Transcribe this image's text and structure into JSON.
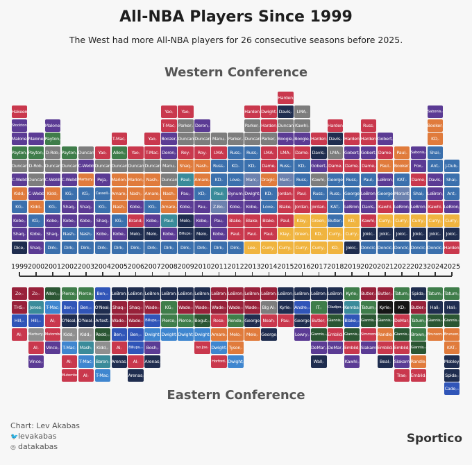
{
  "title": "All-NBA Players Since 1999",
  "subtitle": "The West had more All-NBA players for 26 consecutive seasons before 2025.",
  "footer": {
    "credit": "Chart: Lev Akabas",
    "twitter": "levakabas",
    "instagram": "datakabas",
    "logo": "Sportico"
  },
  "chart_data": {
    "type": "stacked-tile",
    "title": "All-NBA Players Since 1999",
    "years": [
      "1999",
      "2000",
      "2001",
      "2002",
      "2003",
      "2004",
      "2005",
      "2006",
      "2007",
      "2008",
      "2009",
      "2010",
      "2011",
      "2012",
      "2013",
      "2014",
      "2015",
      "2016",
      "2017",
      "2018",
      "2019",
      "2020",
      "2021",
      "2022",
      "2023",
      "2024",
      "2025"
    ],
    "palette": {
      "r": "#c9384d",
      "m": "#98213a",
      "p": "#5b3b94",
      "g": "#3f7d4a",
      "dg": "#2b5633",
      "s": "#7d7d7d",
      "o": "#e07b3c",
      "b": "#3b70ad",
      "n": "#1f2d4f",
      "y": "#f0b43f",
      "t": "#3a8b9a",
      "l": "#3f86cf",
      "sl": "#6c81ae",
      "k": "#151515",
      "pb": "#3055b8",
      "gr": "#8f8f8f"
    },
    "west": {
      "label": "Western Conference",
      "columns": [
        [
          "Dice|n",
          "Shaq|p",
          "Kobe|p",
          "KG|b",
          "Kidd|o",
          "C-Webb|p",
          "Duncan|s",
          "Payton|g",
          "Malone|p",
          "Stockton|p",
          "Hakeem|r"
        ],
        [
          "Shaq|p",
          "Kobe|p",
          "KG|b",
          "Kidd|o",
          "C-Webb|p",
          "Duncan|s",
          "D-Rob|s",
          "Payton|g",
          "Malone|p"
        ],
        [
          "Dirk|b",
          "Shaq|p",
          "Kobe|p",
          "KG|b",
          "Kidd|o",
          "C-Webb|p",
          "Duncan|s",
          "D-Rob|s",
          "Payton|g",
          "Malone|p"
        ],
        [
          "Dirk|b",
          "Nash|b",
          "Kobe|p",
          "Shaq|p",
          "KG|b",
          "C-Webb|p",
          "Duncan|s",
          "Payton|g"
        ],
        [
          "Dirk|b",
          "Nash|b",
          "Kobe|p",
          "Shaq|p",
          "KG|b",
          "Marbury|o",
          "C-Webb|p",
          "Duncan|s"
        ],
        [
          "Dirk|b",
          "Kobe|p",
          "Shaq|p",
          "KG|b",
          "Cassell|b",
          "Peja|p",
          "Duncan|s",
          "Yao|r"
        ],
        [
          "Dirk|b",
          "Kobe|p",
          "KG|b",
          "Nash|o",
          "Amare|o",
          "Marion|o",
          "Duncan|s",
          "Allen|g",
          "T-Mac|r"
        ],
        [
          "Dirk|b",
          "Melo|n",
          "Brand|r",
          "Kobe|p",
          "Nash|o",
          "Marion|o",
          "Duncan|s",
          "Yao|r"
        ],
        [
          "Dirk|b",
          "Melo|n",
          "Kobe|p",
          "KG|b",
          "Amare|o",
          "Nash|o",
          "Duncan|s",
          "T-Mac|r",
          "Yao|r"
        ],
        [
          "Dirk|b",
          "Kobe|p",
          "Paul|t",
          "Amare|o",
          "Nash|o",
          "Duncan|s",
          "Manu|s",
          "Deron|p",
          "Boozer|p",
          "T-Mac|r",
          "Yao|r"
        ],
        [
          "Dirk|b",
          "Billups|n",
          "Melo|n",
          "Kobe|p",
          "Pau|p",
          "Paul|t",
          "Shaq|o",
          "Roy|r",
          "Duncan|s",
          "Parker|s",
          "Yao|r"
        ],
        [
          "Dirk|b",
          "Melo|n",
          "Kobe|p",
          "Pau|p",
          "KD|b",
          "Amare|o",
          "Nash|o",
          "Roy|r",
          "Duncan|s",
          "Deron|p"
        ],
        [
          "Dirk|b",
          "Kobe|p",
          "Pau|p",
          "Z-Bo|sl",
          "Paul|t",
          "KD|b",
          "Russ|b",
          "LMA|r",
          "Manu|s"
        ],
        [
          "Dirk|b",
          "Paul|r",
          "Blake|r",
          "Kobe|p",
          "Bynum|p",
          "Love|b",
          "KD|b",
          "Russ|b",
          "Parker|s"
        ],
        [
          "Lee|y",
          "Paul|r",
          "Blake|r",
          "Kobe|p",
          "Dwight|p",
          "Marc|sl",
          "KD|b",
          "Russ|b",
          "Duncan|s",
          "Parker|s",
          "Harden|r"
        ],
        [
          "Curry|y",
          "Paul|r",
          "Blake|r",
          "Love|b",
          "KD|b",
          "Dragic|o",
          "Dame|r",
          "LMA|r",
          "Parker|s",
          "Harden|r",
          "Dwight|r"
        ],
        [
          "Curry|y",
          "Klay|y",
          "Paul|r",
          "Blake|r",
          "Jordan|r",
          "Marc|sl",
          "Russ|b",
          "LMA|r",
          "Boogie|p",
          "Duncan|s",
          "Davis|n",
          "Harden|r"
        ],
        [
          "Curry|y",
          "Green|y",
          "Klay|y",
          "Jordan|r",
          "Paul|r",
          "Russ|b",
          "KD|b",
          "Dame|r",
          "Boogie|p",
          "Kawhi|s",
          "LMA|s"
        ],
        [
          "Curry|y",
          "KD|y",
          "Green|y",
          "Jordan|r",
          "Russ|b",
          "Kawhi|s",
          "Gobert|p",
          "Davis|n",
          "Harden|r"
        ],
        [
          "KD|y",
          "Curry|y",
          "Butler|b",
          "KAT|b",
          "Russ|b",
          "George|b",
          "Dame|r",
          "LMA|s",
          "Davis|n",
          "Harden|r"
        ],
        [
          "Jokic|n",
          "Curry|y",
          "KD|y",
          "LeBron|p",
          "George|b",
          "Russ|b",
          "Dame|r",
          "Gobert|p",
          "Harden|r"
        ],
        [
          "Doncic|b",
          "Jokic|n",
          "Kawhi|r",
          "Davis|p",
          "LeBron|p",
          "Paul|b",
          "Dame|r",
          "Gobert|p",
          "Harden|r",
          "Russ|r"
        ],
        [
          "Doncic|b",
          "Jokic|n",
          "Curry|y",
          "Kawhi|r",
          "George|b",
          "LeBron|p",
          "Paul|o",
          "Dame|r",
          "Gobert|p"
        ],
        [
          "Doncic|b",
          "Jokic|n",
          "Curry|y",
          "LeBron|p",
          "Morant|sl",
          "KAT|b",
          "Booker|o",
          "Paul|o"
        ],
        [
          "Doncic|b",
          "Jokic|n",
          "Curry|y",
          "LeBron|p",
          "Shai|b",
          "Dame|r",
          "Fox|p",
          "Sabonis|p"
        ],
        [
          "Doncic|b",
          "Jokic|n",
          "Curry|y",
          "Kawhi|r",
          "LeBron|p",
          "Davis|p",
          "Ant|b",
          "Shai|b",
          "KD|o",
          "Booker|o",
          "Sabonis|p"
        ],
        [
          "Harden|r",
          "Jokic|n",
          "Curry|y",
          "LeBron|p",
          "Ant|b",
          "Shai|b",
          "J-Dub|b"
        ]
      ]
    },
    "east": {
      "label": "Eastern Conference",
      "columns": [
        [
          "Zo|m",
          "THS|m",
          "Hill|pb",
          "AI|r"
        ],
        [
          "Zo|m",
          "Jones|t",
          "Hill|pb",
          "Marbury|gr",
          "AI|r",
          "Vince|p"
        ],
        [
          "Allen|dg",
          "T-Mac|l",
          "AI|r",
          "Mutombo|r",
          "Vince|p"
        ],
        [
          "Pierce|g",
          "Ben|pb",
          "O'Neal|n",
          "Kidd|gr",
          "T-Mac|l",
          "AI|r",
          "Mutombo|r"
        ],
        [
          "Pierce|g",
          "Ben|pb",
          "O'Neal|n",
          "Kidd|gr",
          "Mash|t",
          "T-Mac|l",
          "AI|r"
        ],
        [
          "Ben|pb",
          "O'Neal|n",
          "Artest|n",
          "Redd|dg",
          "Kidd|gr",
          "Baron|t",
          "T-Mac|l"
        ],
        [
          "LeBron|n",
          "Shaq|m",
          "Wade|m",
          "Ben|pb",
          "AI|r",
          "Arenas|n"
        ],
        [
          "LeBron|n",
          "Shaq|m",
          "Wade|m",
          "Ben|pb",
          "Billups|pb",
          "AI|r",
          "Arenas|n"
        ],
        [
          "LeBron|n",
          "Wade|m",
          "Billups|pb",
          "Dwight|l",
          "Bosh|p",
          "Arenas|n"
        ],
        [
          "LeBron|n",
          "KG|g",
          "Pierce|g",
          "Dwight|l"
        ],
        [
          "LeBron|n",
          "Wade|m",
          "Pierce|g",
          "Dwight|l"
        ],
        [
          "LeBron|n",
          "Wade|m",
          "Bogut|dg",
          "Dwight|l",
          "Iso Joe|r"
        ],
        [
          "LeBron|m",
          "Wade|m",
          "Rose|r",
          "Amare|o",
          "Dwight|l",
          "Horford|r"
        ],
        [
          "LeBron|m",
          "Wade|m",
          "Rondo|g",
          "Melo|o",
          "Tyson|o",
          "Dwight|l"
        ],
        [
          "LeBron|m",
          "Wade|m",
          "George|n",
          "Melo|o"
        ],
        [
          "LeBron|m",
          "Big Al|s",
          "Noah|r",
          "George|n"
        ],
        [
          "LeBron|n",
          "Kyrie|n",
          "Pau|r"
        ],
        [
          "LeBron|n",
          "Andre|pb",
          "George|n",
          "Lowry|p"
        ],
        [
          "LeBron|n",
          "IT|g",
          "Butler|r",
          "Giannis|dg",
          "DeMar|p",
          "Wall|n"
        ],
        [
          "LeBron|n",
          "Oladipo|n",
          "Giannis|dg",
          "Embiid|r",
          "DeMar|p"
        ],
        [
          "Kyrie|g",
          "Kemba|t",
          "Blake|pb",
          "Giannis|dg",
          "Embiid|r",
          "Kawhi|p"
        ],
        [
          "Butler|m",
          "Tatum|g",
          "Giannis|dg",
          "Simmons|r",
          "Siakam|p"
        ],
        [
          "Butler|m",
          "Kyrie|k",
          "Giannis|dg",
          "Randle|o",
          "Embiid|r",
          "Beal|n"
        ],
        [
          "Tatum|g",
          "KD|k",
          "DeMar|r",
          "Giannis|dg",
          "Embiid|r",
          "Siakam|p",
          "Trae|r"
        ],
        [
          "Spida|n",
          "Butler|m",
          "Tatum|g",
          "Brown|g",
          "Giannis|dg",
          "Randle|o",
          "Embiid|r"
        ],
        [
          "Tatum|g",
          "Hali|n",
          "Giannis|dg",
          "Brunson|o"
        ],
        [
          "Tatum|g",
          "Hali|n",
          "Giannis|dg",
          "Brunson|o",
          "KAT|o",
          "Mobley|n",
          "Spida|n",
          "Cade|pb"
        ]
      ]
    }
  }
}
